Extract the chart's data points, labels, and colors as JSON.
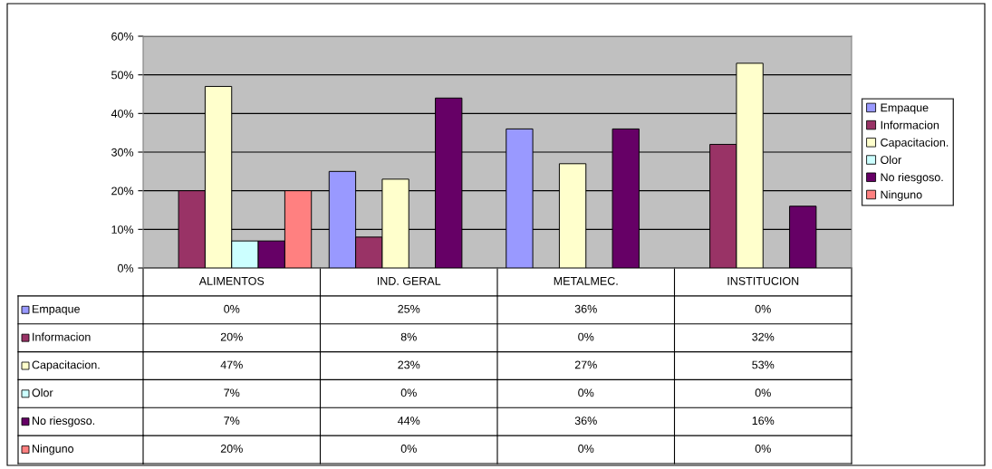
{
  "chart_data": {
    "type": "bar",
    "categories": [
      "ALIMENTOS",
      "IND. GERAL",
      "METALMEC.",
      "INSTITUCION"
    ],
    "series": [
      {
        "name": "Empaque",
        "color": "#9999ff",
        "values": [
          0,
          25,
          36,
          0
        ],
        "value_labels": [
          "0%",
          "25%",
          "36%",
          "0%"
        ]
      },
      {
        "name": "Informacion",
        "color": "#993366",
        "values": [
          20,
          8,
          0,
          32
        ],
        "value_labels": [
          "20%",
          "8%",
          "0%",
          "32%"
        ]
      },
      {
        "name": "Capacitacion.",
        "color": "#ffffcc",
        "values": [
          47,
          23,
          27,
          53
        ],
        "value_labels": [
          "47%",
          "23%",
          "27%",
          "53%"
        ]
      },
      {
        "name": "Olor",
        "color": "#ccffff",
        "values": [
          7,
          0,
          0,
          0
        ],
        "value_labels": [
          "7%",
          "0%",
          "0%",
          "0%"
        ]
      },
      {
        "name": "No riesgoso.",
        "color": "#660066",
        "values": [
          7,
          44,
          36,
          16
        ],
        "value_labels": [
          "7%",
          "44%",
          "36%",
          "16%"
        ]
      },
      {
        "name": "Ninguno",
        "color": "#ff8080",
        "values": [
          20,
          0,
          0,
          0
        ],
        "value_labels": [
          "20%",
          "0%",
          "0%",
          "0%"
        ]
      }
    ],
    "ylim": [
      0,
      60
    ],
    "yticks": [
      {
        "value": 0,
        "label": "0%"
      },
      {
        "value": 10,
        "label": "10%"
      },
      {
        "value": 20,
        "label": "20%"
      },
      {
        "value": 30,
        "label": "30%"
      },
      {
        "value": 40,
        "label": "40%"
      },
      {
        "value": 50,
        "label": "50%"
      },
      {
        "value": 60,
        "label": "60%"
      }
    ],
    "grid": "y",
    "legend": "right"
  }
}
